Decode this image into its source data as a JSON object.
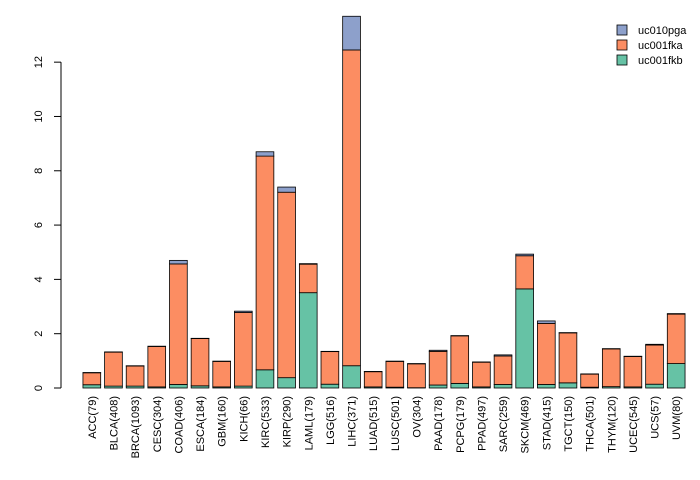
{
  "chart_data": {
    "type": "bar",
    "stacked": true,
    "title": "",
    "xlabel": "",
    "ylabel": "",
    "ylim": [
      0,
      13.7
    ],
    "yticks": [
      0,
      2,
      4,
      6,
      8,
      10,
      12
    ],
    "legend_position": "top-right",
    "categories": [
      "ACC(79)",
      "BLCA(408)",
      "BRCA(1093)",
      "CESC(304)",
      "COAD(406)",
      "ESCA(184)",
      "GBM(160)",
      "KICH(66)",
      "KIRC(533)",
      "KIRP(290)",
      "LAML(179)",
      "LGG(516)",
      "LIHC(371)",
      "LUAD(515)",
      "LUSC(501)",
      "OV(304)",
      "PAAD(178)",
      "PCPG(179)",
      "PPAD(497)",
      "SARC(259)",
      "SKCM(469)",
      "STAD(415)",
      "TGCT(150)",
      "THCA(501)",
      "THYM(120)",
      "UCEC(545)",
      "UCS(57)",
      "UVM(80)"
    ],
    "series": [
      {
        "name": "uc001fkb",
        "color": "#66c2a5",
        "values": [
          0.12,
          0.07,
          0.07,
          0.04,
          0.13,
          0.08,
          0.04,
          0.07,
          0.67,
          0.38,
          3.51,
          0.14,
          0.82,
          0.04,
          0.03,
          0.01,
          0.11,
          0.17,
          0.04,
          0.13,
          3.65,
          0.13,
          0.19,
          0.03,
          0.05,
          0.04,
          0.14,
          0.9
        ]
      },
      {
        "name": "uc001fka",
        "color": "#fc8d62",
        "values": [
          0.44,
          1.25,
          0.74,
          1.49,
          4.44,
          1.74,
          0.94,
          2.71,
          7.87,
          6.83,
          1.05,
          1.2,
          11.63,
          0.56,
          0.95,
          0.88,
          1.24,
          1.75,
          0.91,
          1.05,
          1.22,
          2.25,
          1.84,
          0.48,
          1.39,
          1.12,
          1.44,
          1.82
        ]
      },
      {
        "name": "uc010pga",
        "color": "#8da0cb",
        "values": [
          0.01,
          0.01,
          0.01,
          0.01,
          0.13,
          0.01,
          0.01,
          0.05,
          0.16,
          0.19,
          0.02,
          0.01,
          1.24,
          0.01,
          0.01,
          0.01,
          0.04,
          0.01,
          0.01,
          0.04,
          0.06,
          0.09,
          0.01,
          0.01,
          0.01,
          0.01,
          0.03,
          0.02
        ]
      }
    ],
    "legend_order": [
      "uc010pga",
      "uc001fka",
      "uc001fkb"
    ]
  }
}
